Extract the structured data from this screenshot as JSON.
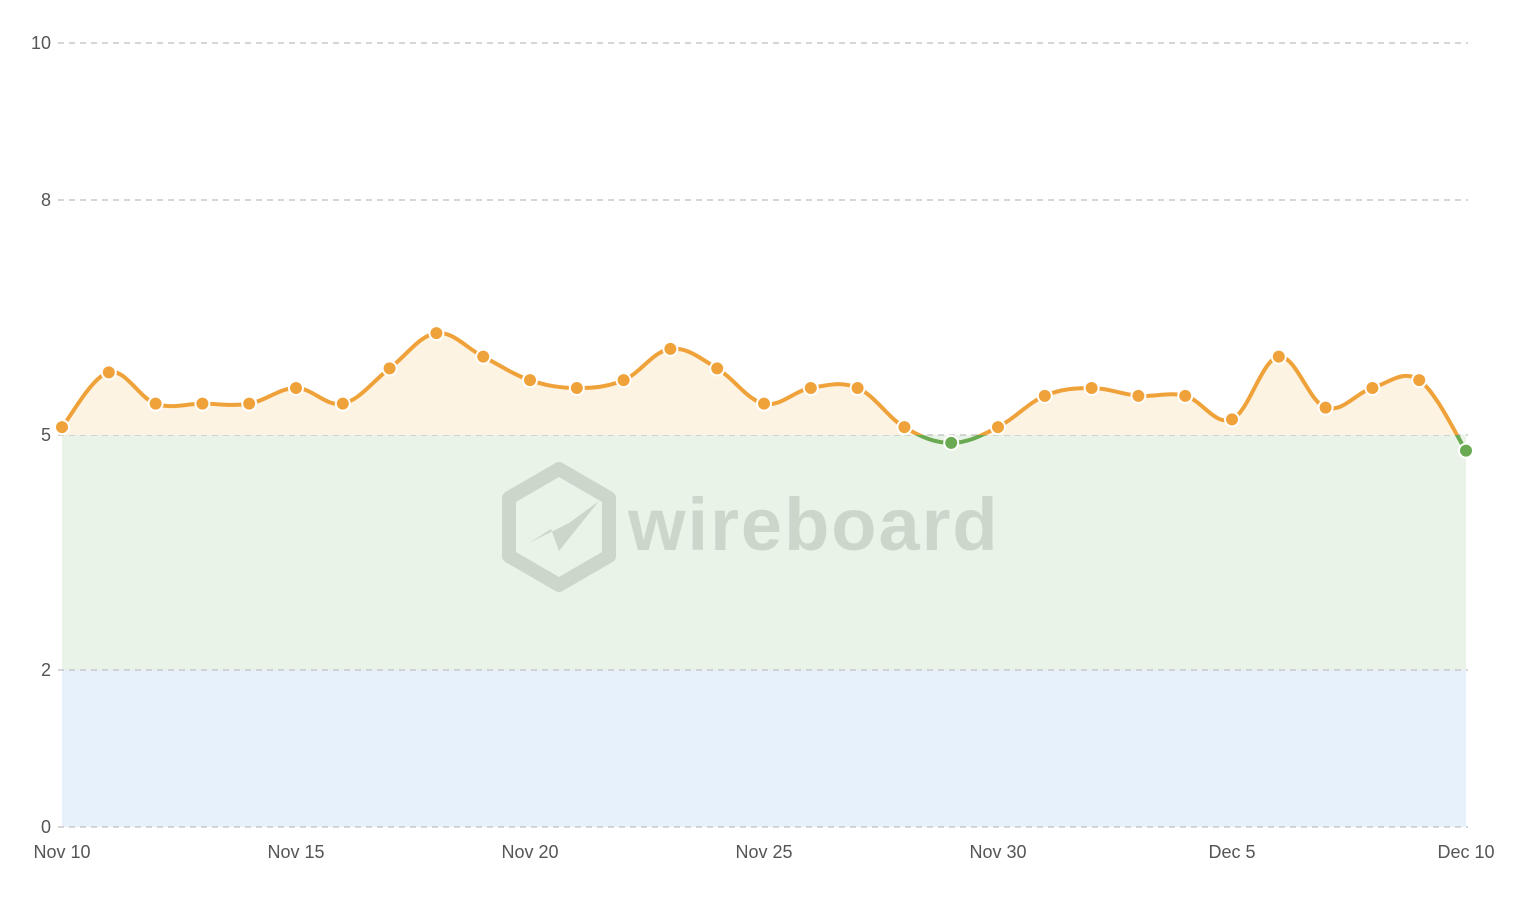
{
  "chart_data": {
    "type": "line",
    "title": "",
    "xlabel": "",
    "ylabel": "",
    "x": [
      "Nov 10",
      "Nov 11",
      "Nov 12",
      "Nov 13",
      "Nov 14",
      "Nov 15",
      "Nov 16",
      "Nov 17",
      "Nov 18",
      "Nov 19",
      "Nov 20",
      "Nov 21",
      "Nov 22",
      "Nov 23",
      "Nov 24",
      "Nov 25",
      "Nov 26",
      "Nov 27",
      "Nov 28",
      "Nov 29",
      "Nov 30",
      "Dec 1",
      "Dec 2",
      "Dec 3",
      "Dec 4",
      "Dec 5",
      "Dec 6",
      "Dec 7",
      "Dec 8",
      "Dec 9",
      "Dec 10"
    ],
    "series": [
      {
        "values": [
          5.1,
          5.8,
          5.4,
          5.4,
          5.4,
          5.6,
          5.4,
          5.85,
          6.3,
          6.0,
          5.7,
          5.6,
          5.7,
          6.1,
          5.85,
          5.4,
          5.6,
          5.6,
          5.1,
          4.9,
          5.1,
          5.5,
          5.6,
          5.5,
          5.5,
          5.2,
          6.0,
          5.35,
          5.6,
          5.7,
          4.8
        ],
        "color": "#f0a23a",
        "below_threshold_color": "#6aaa52"
      }
    ],
    "xticks": [
      "Nov 10",
      "Nov 15",
      "Nov 20",
      "Nov 25",
      "Nov 30",
      "Dec 5",
      "Dec 10"
    ],
    "yticks": [
      "0",
      "2",
      "5",
      "8",
      "10"
    ],
    "ylim": [
      0,
      10
    ],
    "grid": true,
    "bands": [
      {
        "from": 0,
        "to": 2,
        "color": "#e6f1fb"
      },
      {
        "from": 2,
        "to": 5,
        "color": "#e9f3e8"
      },
      {
        "from": 5,
        "to": 10,
        "color": "#fdf3e3"
      }
    ],
    "threshold": 5
  },
  "watermark": {
    "text": "wireboard"
  }
}
